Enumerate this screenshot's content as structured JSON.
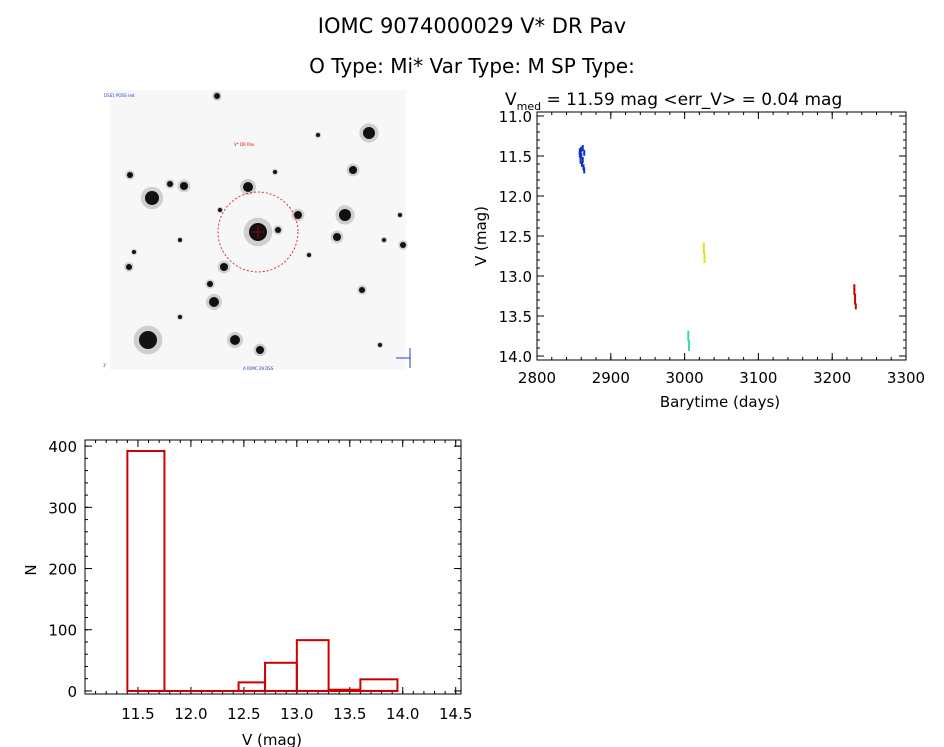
{
  "header": {
    "title_line1": "IOMC 9074000029    V* DR Pav",
    "title_line2": "O Type: Mi*   Var Type: M   SP Type:"
  },
  "colors": {
    "axis": "#000000",
    "histogram": "#cc0000",
    "finder_circle": "#dd0000",
    "series_blue": "#1030c8",
    "series_yellow": "#e0e020",
    "series_cyan": "#40d8b0",
    "series_red": "#cc0000"
  },
  "chart_data": [
    {
      "type": "scatter",
      "title_main": "V",
      "title_sub": "med",
      "title_rest": " = 11.59 mag <err_V> = 0.04 mag",
      "xlabel": "Barytime (days)",
      "ylabel": "V (mag)",
      "xlim": [
        2800,
        3300
      ],
      "ylim": [
        14.05,
        10.95
      ],
      "y_inverted": true,
      "xticks": [
        2800,
        2900,
        3000,
        3100,
        3200,
        3300
      ],
      "yticks": [
        11.0,
        11.5,
        12.0,
        12.5,
        13.0,
        13.5,
        14.0
      ],
      "ytick_labels": [
        "11.0",
        "11.5",
        "12.0",
        "12.5",
        "13.0",
        "13.5",
        "14.0"
      ],
      "series": [
        {
          "color": "series_blue",
          "points": [
            [
              2858,
              11.44
            ],
            [
              2858,
              11.48
            ],
            [
              2859,
              11.52
            ],
            [
              2859,
              11.56
            ],
            [
              2860,
              11.42
            ],
            [
              2860,
              11.5
            ],
            [
              2861,
              11.6
            ],
            [
              2862,
              11.4
            ],
            [
              2862,
              11.55
            ],
            [
              2863,
              11.64
            ],
            [
              2864,
              11.68
            ],
            [
              2864,
              11.46
            ]
          ]
        },
        {
          "color": "series_yellow",
          "points": [
            [
              3026,
              12.62
            ],
            [
              3026,
              12.68
            ],
            [
              3027,
              12.74
            ],
            [
              3027,
              12.8
            ]
          ]
        },
        {
          "color": "series_cyan",
          "points": [
            [
              3005,
              13.72
            ],
            [
              3005,
              13.78
            ],
            [
              3006,
              13.84
            ],
            [
              3006,
              13.9
            ]
          ]
        },
        {
          "color": "series_red",
          "points": [
            [
              3230,
              13.14
            ],
            [
              3230,
              13.2
            ],
            [
              3231,
              13.26
            ],
            [
              3231,
              13.32
            ],
            [
              3232,
              13.38
            ]
          ]
        }
      ]
    },
    {
      "type": "bar",
      "xlabel": "V (mag)",
      "ylabel": "N",
      "xlim": [
        11.0,
        14.55
      ],
      "ylim": [
        -5,
        410
      ],
      "xticks": [
        11.5,
        12.0,
        12.5,
        13.0,
        13.5,
        14.0,
        14.5
      ],
      "xtick_labels": [
        "11.5",
        "12.0",
        "12.5",
        "13.0",
        "13.5",
        "14.0",
        "14.5"
      ],
      "yticks": [
        0,
        100,
        200,
        300,
        400
      ],
      "bin_edges": [
        11.4,
        11.75,
        12.1,
        12.45,
        12.7,
        13.0,
        13.3,
        13.6,
        13.95
      ],
      "values": [
        392,
        0,
        0,
        14,
        46,
        83,
        2,
        19
      ]
    }
  ],
  "finder": {
    "corner_top_left": "DSS1 POSS red",
    "target_label": "V* DR Pav",
    "corner_bottom_left": "3'",
    "bottom_label": "A IOMC 29 DSS"
  }
}
